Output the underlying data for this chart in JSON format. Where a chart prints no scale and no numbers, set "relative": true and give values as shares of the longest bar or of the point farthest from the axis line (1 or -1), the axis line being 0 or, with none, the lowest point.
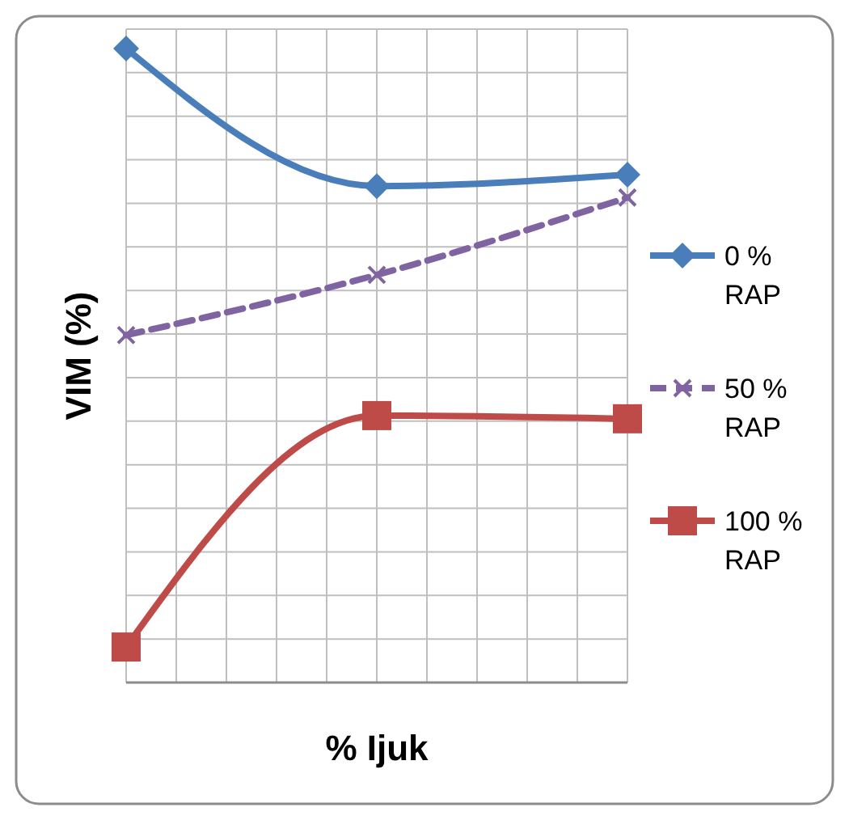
{
  "chart_data": {
    "type": "line",
    "relative": true,
    "xlabel": "% Ijuk",
    "ylabel": "VIM (%)",
    "categories": [
      null,
      null,
      null
    ],
    "grid": true,
    "legend": "right",
    "series": [
      {
        "name": "0 % RAP",
        "color": "#4a7ebb",
        "marker": "diamond",
        "line_style": "solid",
        "values": [
          1,
          0.783,
          0.801
        ]
      },
      {
        "name": "50 % RAP",
        "color": "#8064a2",
        "marker": "cross",
        "line_style": "dashed",
        "values": [
          0.548,
          0.643,
          0.765
        ]
      },
      {
        "name": "100 % RAP",
        "color": "#be4b48",
        "marker": "square",
        "line_style": "solid",
        "values": [
          0.056,
          0.421,
          0.416
        ]
      }
    ]
  }
}
